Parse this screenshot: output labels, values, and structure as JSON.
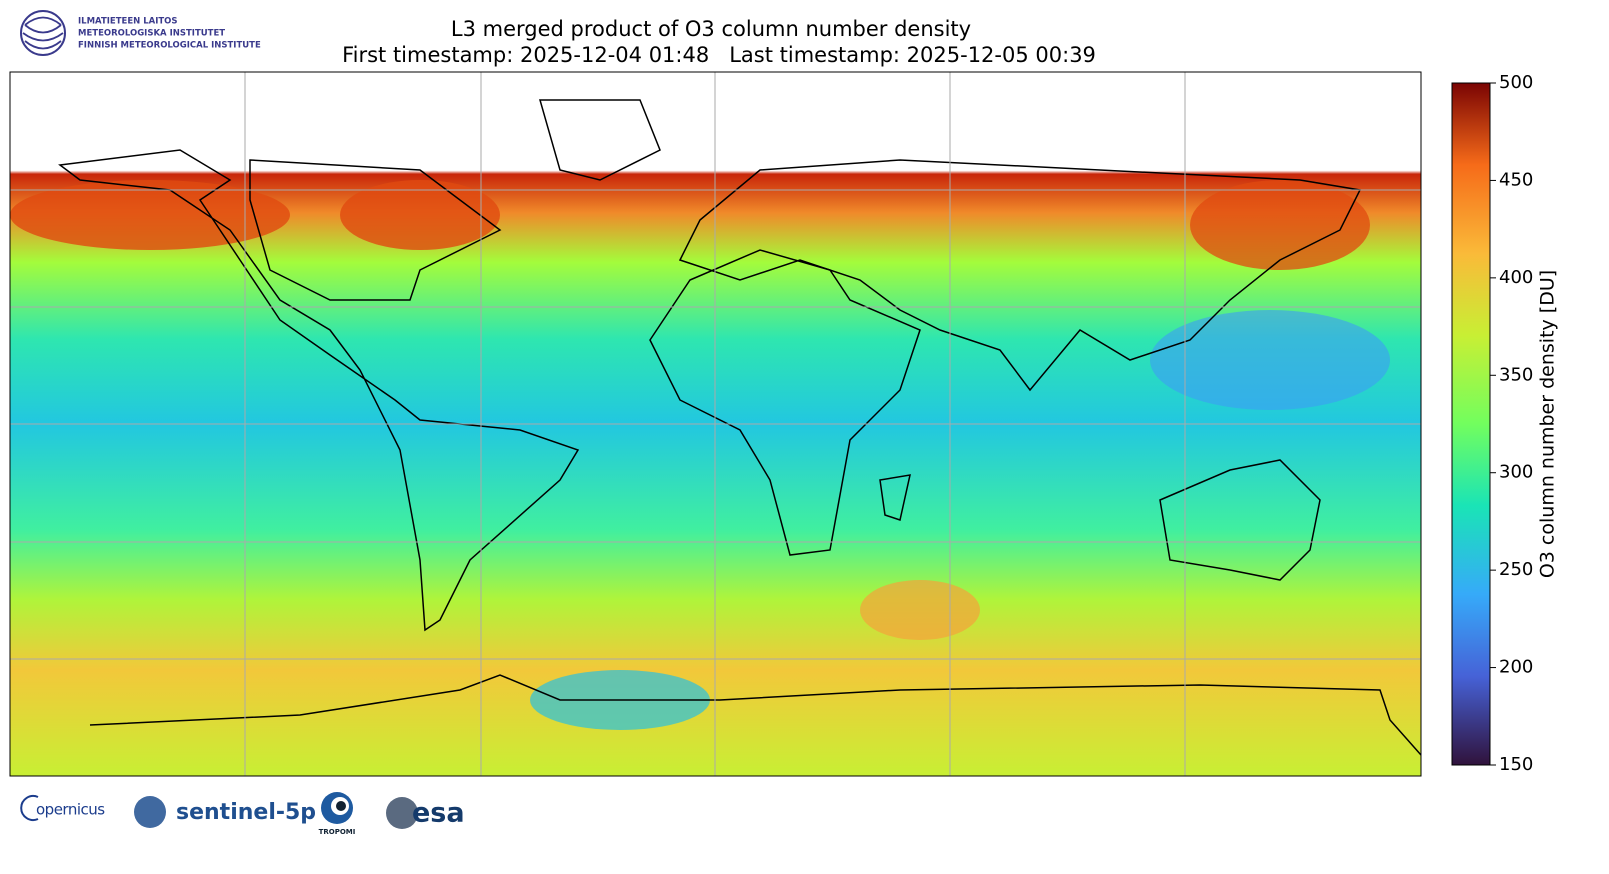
{
  "header": {
    "logo_lines": [
      "ILMATIETEEN LAITOS",
      "METEOROLOGISKA INSTITUTET",
      "FINNISH METEOROLOGICAL INSTITUTE"
    ],
    "title": "L3 merged product of O3 column number density",
    "subtitle": "First timestamp: 2025-12-04 01:48   Last timestamp: 2025-12-05 00:39"
  },
  "colorbar": {
    "label": "O3 column number density [DU]",
    "lim": [
      150,
      500
    ],
    "ticks": [
      150,
      200,
      250,
      300,
      350,
      400,
      450,
      500
    ]
  },
  "footer": {
    "logos": [
      "opernicus",
      "sentinel-5p",
      "TROPOMI",
      "esa"
    ]
  }
}
